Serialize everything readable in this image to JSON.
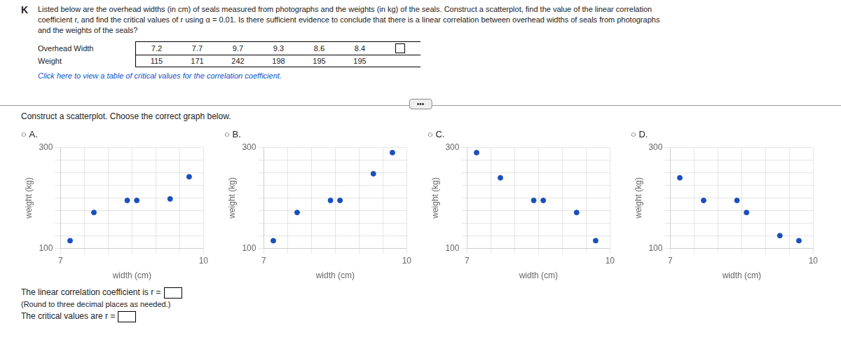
{
  "chart_data": [
    {
      "type": "scatter",
      "title": "○ A.",
      "x_label": "width (cm)",
      "y_label": "weight (kg)",
      "x": [
        7.2,
        7.7,
        9.7,
        9.3,
        8.6,
        8.4
      ],
      "values": [
        115,
        171,
        242,
        198,
        195,
        195
      ],
      "color": "#1a4fbd",
      "xlim": [
        7,
        10
      ],
      "ylim": [
        100,
        300
      ],
      "xticks": [
        7,
        10
      ],
      "yticks": [
        100,
        300
      ],
      "grid": true
    },
    {
      "type": "scatter",
      "title": "○ B.",
      "x_label": "width (cm)",
      "y_label": "weight (kg)",
      "x": [
        7.2,
        7.7,
        8.4,
        8.6,
        9.3,
        9.7
      ],
      "values": [
        115,
        171,
        195,
        195,
        248,
        290
      ],
      "color": "#1a4fbd",
      "xlim": [
        7,
        10
      ],
      "ylim": [
        100,
        300
      ],
      "xticks": [
        7,
        10
      ],
      "yticks": [
        100,
        300
      ],
      "grid": true
    },
    {
      "type": "scatter",
      "title": "○ C.",
      "x_label": "width (cm)",
      "y_label": "weight (kg)",
      "x": [
        7.2,
        7.7,
        8.4,
        8.6,
        9.3,
        9.7
      ],
      "values": [
        290,
        240,
        195,
        195,
        171,
        115
      ],
      "color": "#1a4fbd",
      "xlim": [
        7,
        10
      ],
      "ylim": [
        100,
        300
      ],
      "xticks": [
        7,
        10
      ],
      "yticks": [
        100,
        300
      ],
      "grid": true
    },
    {
      "type": "scatter",
      "title": "○ D.",
      "x_label": "width (cm)",
      "y_label": "weight (kg)",
      "x": [
        7.2,
        7.7,
        8.4,
        8.6,
        9.3,
        9.7
      ],
      "values": [
        240,
        195,
        195,
        171,
        125,
        115
      ],
      "color": "#1a4fbd",
      "xlim": [
        7,
        10
      ],
      "ylim": [
        100,
        300
      ],
      "xticks": [
        7,
        10
      ],
      "yticks": [
        100,
        300
      ],
      "grid": true
    }
  ],
  "annotations": [
    "K",
    "Listed below are the overhead widths (in cm) of seals measured from photographs and the weights (in kg) of the seals. Construct a scatterplot, find the value of the linear correlation",
    "coefficient r, and find the critical values of r using α = 0.01. Is there sufficient evidence to conclude that there is a linear correlation between overhead widths of seals from photographs",
    "and the weights of the seals?",
    "Click here to view a table of critical values for the correlation coefficient.",
    "Construct a scatterplot. Choose the correct graph below.",
    "•••",
    "The linear correlation coefficient is r =",
    "(Round to three decimal places as needed.)",
    "The critical values are r ="
  ],
  "table": [
    {
      "name": "Overhead Width",
      "values": [
        7.2,
        7.7,
        9.7,
        9.3,
        8.6,
        8.4
      ]
    },
    {
      "name": "Weight",
      "values": [
        115,
        171,
        242,
        198,
        195,
        195
      ]
    }
  ]
}
